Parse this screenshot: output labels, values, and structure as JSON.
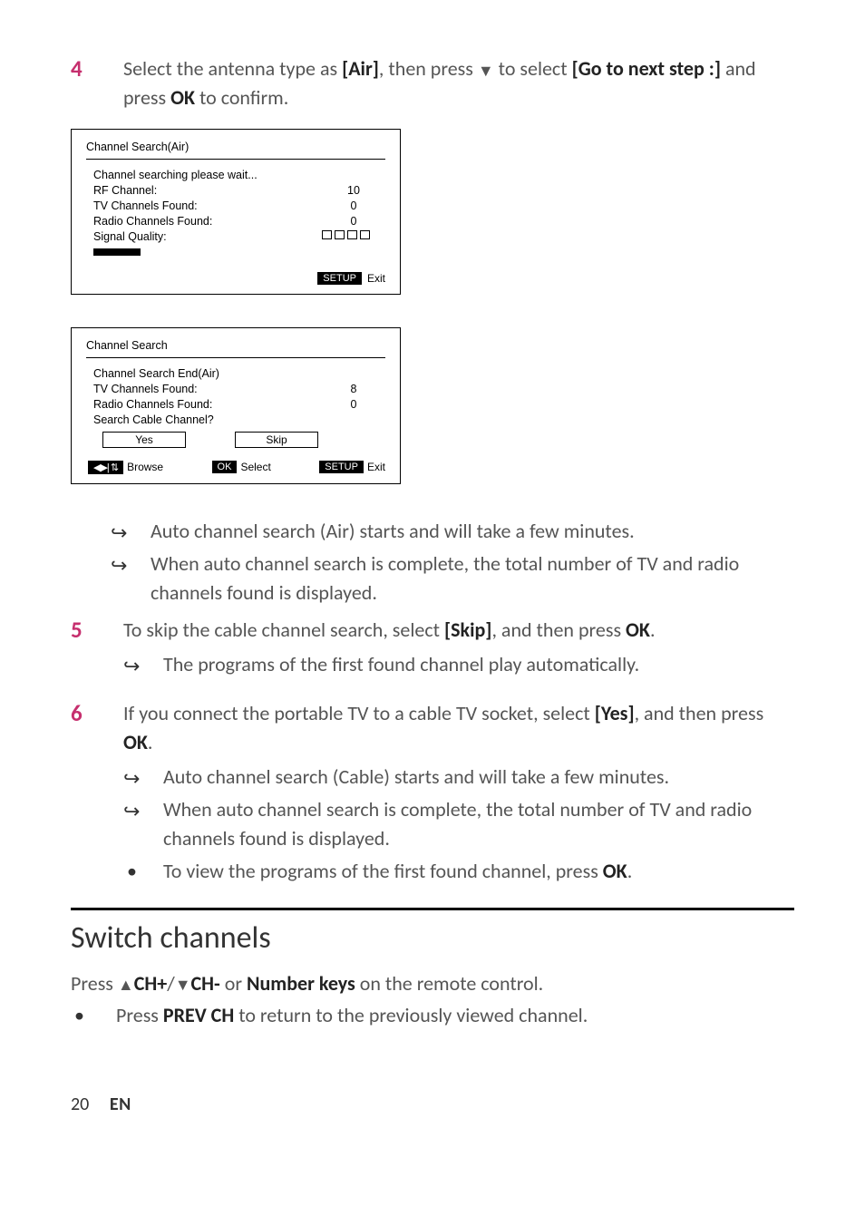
{
  "step4": {
    "num": "4",
    "text_before_air": "Select the antenna type as ",
    "air": "[Air]",
    "text_mid": ", then press ",
    "triangle": "▼",
    "text_after_tri": " to select ",
    "goto": "[Go to next step :]",
    "text_and": " and press ",
    "ok": "OK",
    "text_end": " to confirm."
  },
  "panel1": {
    "title": "Channel Search(Air)",
    "wait": "Channel searching please wait...",
    "rf_label": "RF Channel:",
    "rf_val": "10",
    "tv_label": "TV Channels Found:",
    "tv_val": "0",
    "radio_label": "Radio Channels Found:",
    "radio_val": "0",
    "signal_label": "Signal Quality:",
    "setup": "SETUP",
    "exit": "Exit",
    "signal_box_count": 4
  },
  "panel2": {
    "title": "Channel Search",
    "end_label": "Channel Search End(Air)",
    "tv_label": "TV Channels Found:",
    "tv_val": "8",
    "radio_label": "Radio Channels Found:",
    "radio_val": "0",
    "cable_label": "Search Cable Channel?",
    "yes": "Yes",
    "skip": "Skip",
    "browse": "Browse",
    "ok": "OK",
    "select": "Select",
    "setup": "SETUP",
    "exit": "Exit"
  },
  "step4_results": {
    "b1": "Auto channel search (Air) starts and will take a few minutes.",
    "b2": "When auto channel search is complete, the total number of TV and radio channels found is displayed."
  },
  "step5": {
    "num": "5",
    "text1": "To skip the cable channel search, select ",
    "skip": "[Skip]",
    "text2": ", and then press ",
    "ok": "OK",
    "text3": ".",
    "b1": "The programs of the first found channel play automatically."
  },
  "step6": {
    "num": "6",
    "text1": "If you connect the portable TV to a cable TV socket, select ",
    "yes": "[Yes]",
    "text2": ", and then press ",
    "ok": "OK",
    "text3": ".",
    "b1": "Auto channel search (Cable) starts and will take a few minutes.",
    "b2": "When auto channel search is complete, the total number of TV and radio channels found is displayed.",
    "b3_pre": "To view the programs of the first found channel, press ",
    "b3_ok": "OK",
    "b3_post": "."
  },
  "section": {
    "title": "Switch channels",
    "line_pre": "Press ",
    "up": "▲",
    "chplus": "CH+",
    "slash": "/",
    "down": "▼",
    "chminus": "CH-",
    "or": " or ",
    "numkeys": "Number keys",
    "post": " on the remote control.",
    "bullet_pre": "Press ",
    "prev": "PREV CH",
    "bullet_post": " to return to the previously viewed channel."
  },
  "footer": {
    "page": "20",
    "lang": "EN"
  },
  "glyphs": {
    "arrow": "↪",
    "nav": "◀▶| ⇅"
  }
}
